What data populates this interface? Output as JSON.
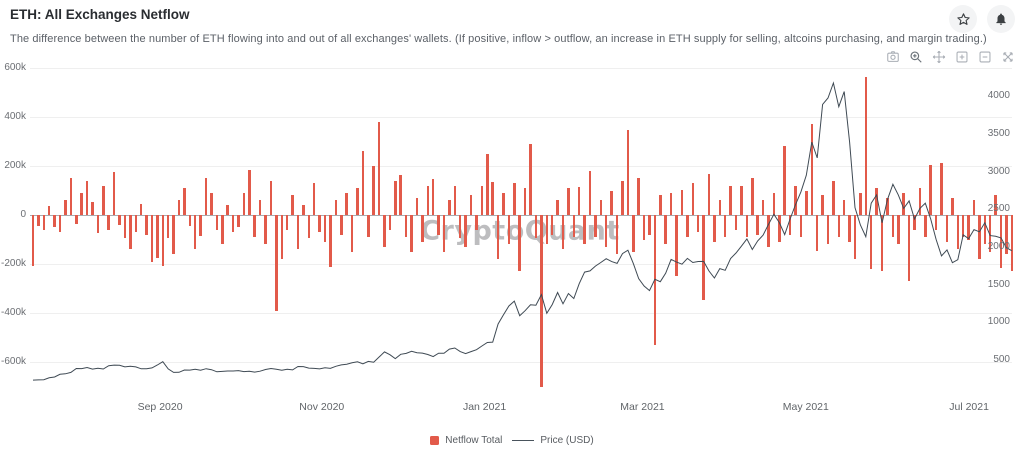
{
  "header": {
    "title": "ETH: All Exchanges Netflow",
    "subtitle": "The difference between the number of ETH flowing into and out of all exchanges' wallets. (If positive, inflow > outflow, an increase in ETH supply for selling, altcoins purchasing, and margin trading.)",
    "action_icons": [
      "star-icon",
      "bell-icon"
    ]
  },
  "toolbar": {
    "icons": [
      "camera-icon",
      "zoom-icon",
      "pan-icon",
      "zoom-in-icon",
      "zoom-out-icon",
      "reset-zoom-icon"
    ]
  },
  "watermark": "CryptoQuant",
  "legend": {
    "netflow_label": "Netflow Total",
    "price_label": "Price (USD)"
  },
  "colors": {
    "bar": "#e25a4a",
    "line": "#3f4a54",
    "grid": "#efefef",
    "zero_line": "#a7abb0",
    "axis_text": "#6b6e73"
  },
  "chart_data": {
    "type": "bar",
    "note": "Daily ETH exchange netflow (thousands of ETH, left axis) with ETH price USD (right axis), ~2-day sampling, Jul 2020 - Jul 2021",
    "x_ticks": [
      {
        "label": "Sep 2020",
        "i": 23.5
      },
      {
        "label": "Nov 2020",
        "i": 53.4
      },
      {
        "label": "Jan 2021",
        "i": 83.5
      },
      {
        "label": "Mar 2021",
        "i": 112.7
      },
      {
        "label": "May 2021",
        "i": 142.9
      },
      {
        "label": "Jul 2021",
        "i": 173.1
      }
    ],
    "left_axis_ticks": [
      {
        "v": 600,
        "label": "600k"
      },
      {
        "v": 400,
        "label": "400k"
      },
      {
        "v": 200,
        "label": "200k"
      },
      {
        "v": 0,
        "label": "0"
      },
      {
        "v": -200,
        "label": "-200k"
      },
      {
        "v": -400,
        "label": "-400k"
      },
      {
        "v": -600,
        "label": "-600k"
      }
    ],
    "right_axis_ticks": [
      4000,
      3500,
      3000,
      2500,
      2000,
      1500,
      1000,
      500
    ],
    "series": [
      {
        "name": "Netflow Total",
        "type": "bar",
        "unit": "kETH",
        "values": [
          -210,
          -45,
          -60,
          35,
          -50,
          -70,
          60,
          150,
          -35,
          90,
          140,
          55,
          -75,
          120,
          -60,
          175,
          -40,
          -95,
          -140,
          -70,
          45,
          -80,
          -190,
          -175,
          -210,
          -95,
          -160,
          60,
          110,
          -45,
          -140,
          -85,
          150,
          90,
          -60,
          -120,
          40,
          -70,
          -50,
          90,
          185,
          -90,
          60,
          -120,
          140,
          -390,
          -180,
          -60,
          80,
          -140,
          40,
          -95,
          130,
          -70,
          -110,
          -212,
          60,
          -80,
          90,
          -150,
          110,
          260,
          -90,
          200,
          380,
          -130,
          -60,
          140,
          163,
          -90,
          -150,
          70,
          -110,
          120,
          145,
          -80,
          -150,
          60,
          120,
          -95,
          -130,
          80,
          -60,
          120,
          250,
          135,
          -180,
          90,
          -120,
          130,
          -230,
          110,
          290,
          -95,
          -700,
          -120,
          -80,
          60,
          -140,
          110,
          -90,
          115,
          -120,
          180,
          -90,
          60,
          -130,
          100,
          -160,
          140,
          346,
          -150,
          152,
          -100,
          -80,
          -530,
          80,
          -120,
          90,
          -250,
          104,
          -90,
          130,
          -70,
          -346,
          166,
          -110,
          60,
          -90,
          120,
          -60,
          120,
          -90,
          150,
          -80,
          60,
          -130,
          90,
          -110,
          283,
          -80,
          120,
          -90,
          96,
          371,
          -146,
          80,
          -120,
          140,
          -90,
          60,
          -110,
          -180,
          90,
          565,
          -220,
          110,
          -230,
          70,
          -90,
          -120,
          90,
          -270,
          -60,
          110,
          -90,
          204,
          -60,
          213,
          -110,
          70,
          -140,
          -90,
          -100,
          60,
          -180,
          -120,
          -150,
          80,
          -217,
          -160,
          -230
        ]
      },
      {
        "name": "Price (USD)",
        "type": "line",
        "unit": "USD",
        "values": [
          233,
          236,
          239,
          264,
          275,
          311,
          317,
          335,
          387,
          386,
          400,
          379,
          390,
          380,
          424,
          433,
          430,
          408,
          416,
          409,
          383,
          383,
          395,
          434,
          477,
          382,
          335,
          337,
          368,
          366,
          377,
          365,
          385,
          371,
          344,
          349,
          354,
          354,
          360,
          346,
          352,
          340,
          351,
          374,
          387,
          378,
          365,
          378,
          369,
          414,
          413,
          393,
          388,
          382,
          397,
          388,
          416,
          435,
          444,
          463,
          476,
          449,
          482,
          471,
          540,
          608,
          570,
          518,
          576,
          588,
          616,
          597,
          592,
          573,
          545,
          590,
          589,
          644,
          659,
          611,
          585,
          612,
          636,
          686,
          732,
          738,
          978,
          1100,
          1216,
          1281,
          1087,
          1154,
          1232,
          1227,
          1367,
          1120,
          1235,
          1395,
          1246,
          1382,
          1315,
          1512,
          1666,
          1682,
          1745,
          1793,
          1843,
          1805,
          1781,
          1911,
          1956,
          1781,
          1578,
          1482,
          1420,
          1570,
          1539,
          1651,
          1834,
          1798,
          1770,
          1848,
          1793,
          1806,
          1808,
          1680,
          1587,
          1712,
          1690,
          1846,
          1919,
          2009,
          2106,
          1966,
          2080,
          2157,
          2299,
          2432,
          2323,
          2163,
          2370,
          2560,
          2730,
          2950,
          3390,
          3180,
          3890,
          3975,
          4174,
          3860,
          4060,
          3390,
          2520,
          2290,
          2135,
          2580,
          2690,
          2320,
          2630,
          2830,
          2690,
          2510,
          2610,
          2370,
          2510,
          2580,
          2370,
          2100,
          1880,
          1960,
          1790,
          1830,
          2160,
          2110,
          2230,
          2200,
          2320,
          2150,
          2140,
          2120,
          1990,
          1950
        ]
      }
    ]
  }
}
